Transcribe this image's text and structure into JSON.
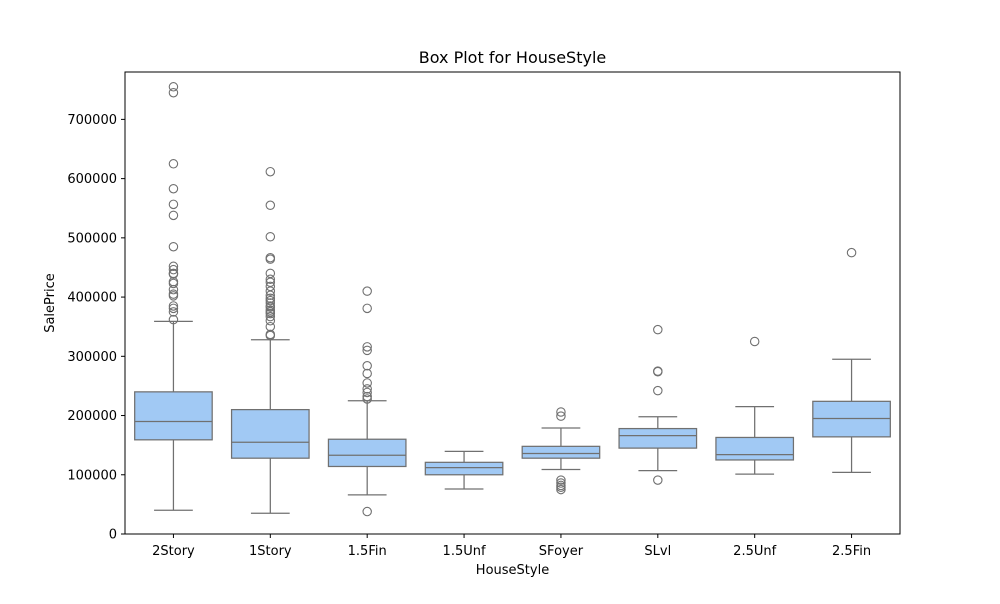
{
  "chart_data": {
    "type": "box",
    "title": "Box Plot for HouseStyle",
    "xlabel": "HouseStyle",
    "ylabel": "SalePrice",
    "ylim": [
      0,
      780000
    ],
    "yticks": [
      0,
      100000,
      200000,
      300000,
      400000,
      500000,
      600000,
      700000
    ],
    "grid": false,
    "box_color": "#a1c9f4",
    "line_color": "#707070",
    "categories": [
      "2Story",
      "1Story",
      "1.5Fin",
      "1.5Unf",
      "SFoyer",
      "SLvl",
      "2.5Unf",
      "2.5Fin"
    ],
    "boxes": [
      {
        "category": "2Story",
        "whisker_low": 40000,
        "q1": 159000,
        "median": 190000,
        "q3": 240000,
        "whisker_high": 359000,
        "outliers": [
          361919,
          375000,
          381000,
          385000,
          402000,
          405000,
          412500,
          423000,
          426000,
          438780,
          440000,
          446261,
          451950,
          485000,
          538000,
          556581,
          582933,
          625000,
          745000,
          755000
        ]
      },
      {
        "category": "1Story",
        "whisker_low": 35000,
        "q1": 128000,
        "median": 155000,
        "q3": 210000,
        "whisker_high": 328000,
        "outliers": [
          335000,
          337000,
          350000,
          360000,
          367000,
          372000,
          375000,
          378000,
          383000,
          385000,
          390000,
          394000,
          398000,
          403000,
          410000,
          418000,
          425000,
          430000,
          440000,
          464000,
          466500,
          501837,
          555000,
          611657
        ]
      },
      {
        "category": "1.5Fin",
        "whisker_low": 66000,
        "q1": 114000,
        "median": 133000,
        "q3": 160000,
        "whisker_high": 225000,
        "outliers": [
          37900,
          228000,
          232000,
          239000,
          245000,
          255000,
          271000,
          284000,
          310000,
          316000,
          381000,
          410000
        ]
      },
      {
        "category": "1.5Unf",
        "whisker_low": 76000,
        "q1": 100000,
        "median": 112000,
        "q3": 121000,
        "whisker_high": 139400,
        "outliers": []
      },
      {
        "category": "SFoyer",
        "whisker_low": 109000,
        "q1": 128000,
        "median": 136000,
        "q3": 148000,
        "whisker_high": 179000,
        "outliers": [
          75000,
          79000,
          82000,
          86000,
          91000,
          199000,
          206000
        ]
      },
      {
        "category": "SLvl",
        "whisker_low": 107000,
        "q1": 145000,
        "median": 166000,
        "q3": 178000,
        "whisker_high": 198000,
        "outliers": [
          91000,
          242000,
          274000,
          275000,
          345000
        ]
      },
      {
        "category": "2.5Unf",
        "whisker_low": 101000,
        "q1": 125000,
        "median": 134000,
        "q3": 163000,
        "whisker_high": 215000,
        "outliers": [
          325000
        ]
      },
      {
        "category": "2.5Fin",
        "whisker_low": 104000,
        "q1": 164000,
        "median": 195000,
        "q3": 224000,
        "whisker_high": 295000,
        "outliers": [
          475000
        ]
      }
    ]
  }
}
